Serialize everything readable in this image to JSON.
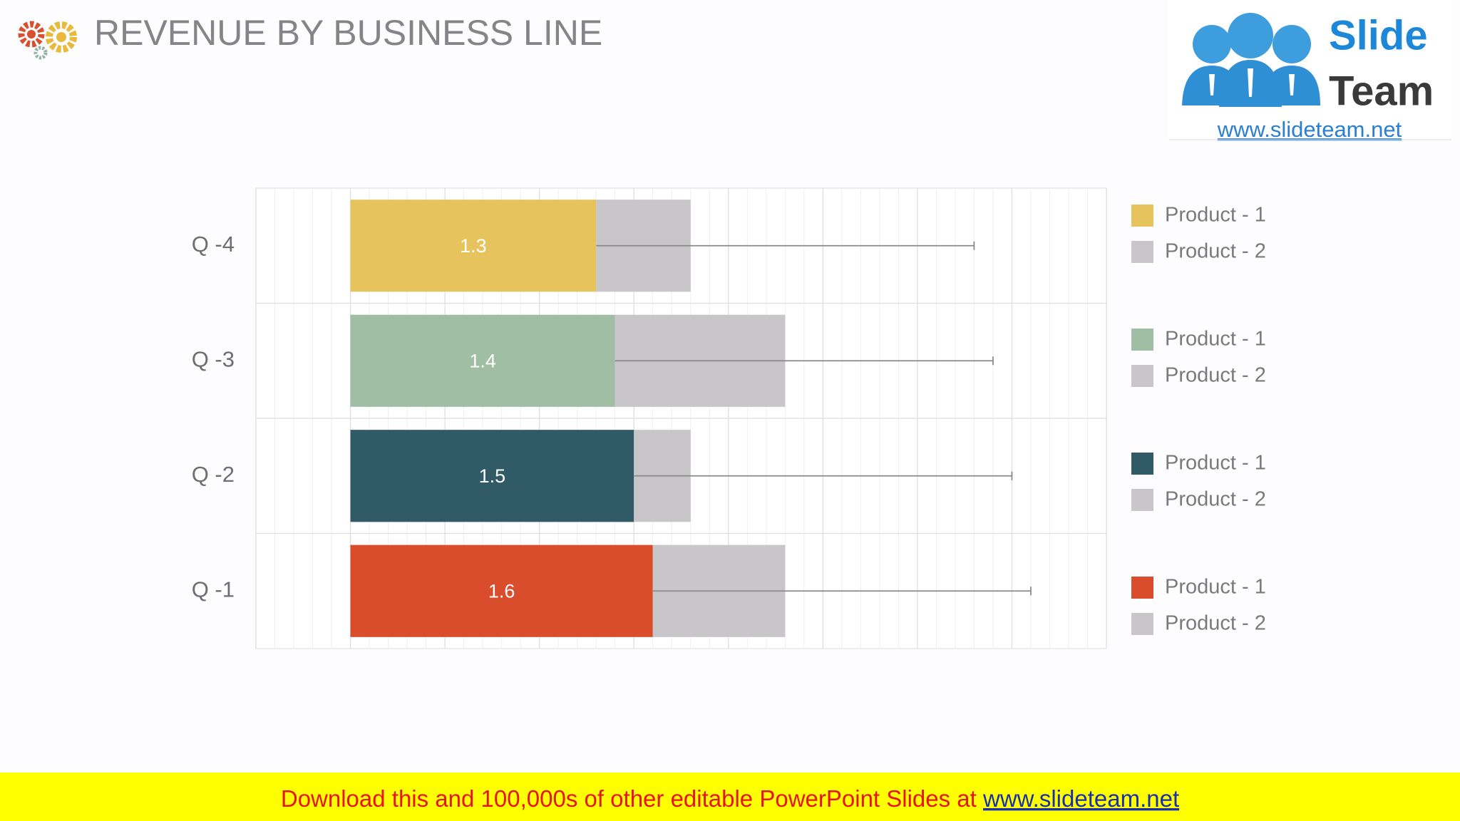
{
  "chart_data": {
    "type": "stacked-barh",
    "title": "REVENUE BY BUSINESS LINE",
    "categories": [
      "Q -4",
      "Q -3",
      "Q -2",
      "Q -1"
    ],
    "series": [
      {
        "name": "Product - 1",
        "colors": [
          "#e6c35c",
          "#9fbea3",
          "#305a66",
          "#d94c2c"
        ],
        "values": [
          1.3,
          1.4,
          1.5,
          1.6
        ],
        "errors": [
          2.0,
          2.0,
          2.0,
          2.0
        ]
      },
      {
        "name": "Product - 2",
        "color": "#c8c6c8",
        "values": [
          0.5,
          0.9,
          0.3,
          0.7
        ]
      }
    ],
    "xlim": [
      -0.5,
      4
    ],
    "xticks": [
      -0.5,
      0,
      0.5,
      1,
      1.5,
      2,
      2.5,
      3,
      3.5,
      4
    ],
    "grid": true,
    "minor_grid": true,
    "legend": "right"
  },
  "logo": {
    "word1": "Slide",
    "word2": "Team",
    "url": "www.slideteam.net"
  },
  "banner": {
    "text": "Download this and 100,000s of other editable PowerPoint Slides at ",
    "link": "www.slideteam.net"
  }
}
